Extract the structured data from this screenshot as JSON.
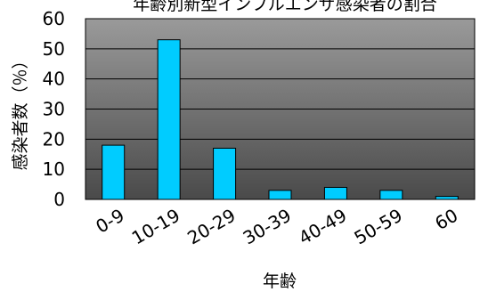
{
  "chart_data": {
    "type": "bar",
    "title": "年齢別新型インフルエンザ感染者の割合",
    "xlabel": "年齢",
    "ylabel": "感染者数（％）",
    "categories": [
      "0-9",
      "10-19",
      "20-29",
      "30-39",
      "40-49",
      "50-59",
      "60"
    ],
    "values": [
      18,
      53,
      17,
      3,
      4,
      3,
      1
    ],
    "ylim": [
      0,
      60
    ],
    "yticks": [
      "0",
      "10",
      "20",
      "30",
      "40",
      "50",
      "60"
    ],
    "grid": true,
    "legend": "none",
    "colors": {
      "bar_fill": "#00ccff",
      "bar_stroke": "#000000",
      "plot_bg_top": "#9a9a9a",
      "plot_bg_bottom": "#4a4a4a",
      "gridline": "#000000"
    }
  }
}
